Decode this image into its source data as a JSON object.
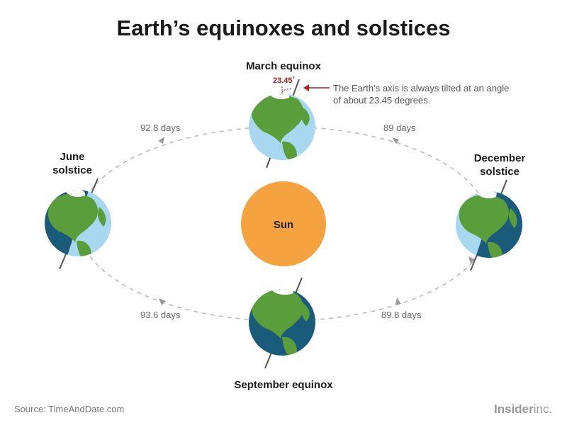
{
  "title": "Earth’s equinoxes and solstices",
  "sun_label": "Sun",
  "positions": {
    "march": "March equinox",
    "june_line1": "June",
    "june_line2": "solstice",
    "december_line1": "December",
    "december_line2": "solstice",
    "september": "September equinox"
  },
  "durations": {
    "top_left": "92.8 days",
    "top_right": "89 days",
    "bottom_left": "93.6 days",
    "bottom_right": "89.8 days"
  },
  "annotation": {
    "angle": "23.45˚",
    "note": "The Earth’s axis is always tilted at an angle of about 23.45 degrees."
  },
  "source": "Source: TimeAndDate.com",
  "brand": {
    "bold": "Insider",
    "light": "inc."
  },
  "colors": {
    "sun": "#F5A340",
    "ocean_day": "#A8D8F0",
    "ocean_night": "#1A5A7A",
    "land": "#5A9E3C",
    "accent_red": "#B22222",
    "orbit": "#BBBBBB"
  }
}
